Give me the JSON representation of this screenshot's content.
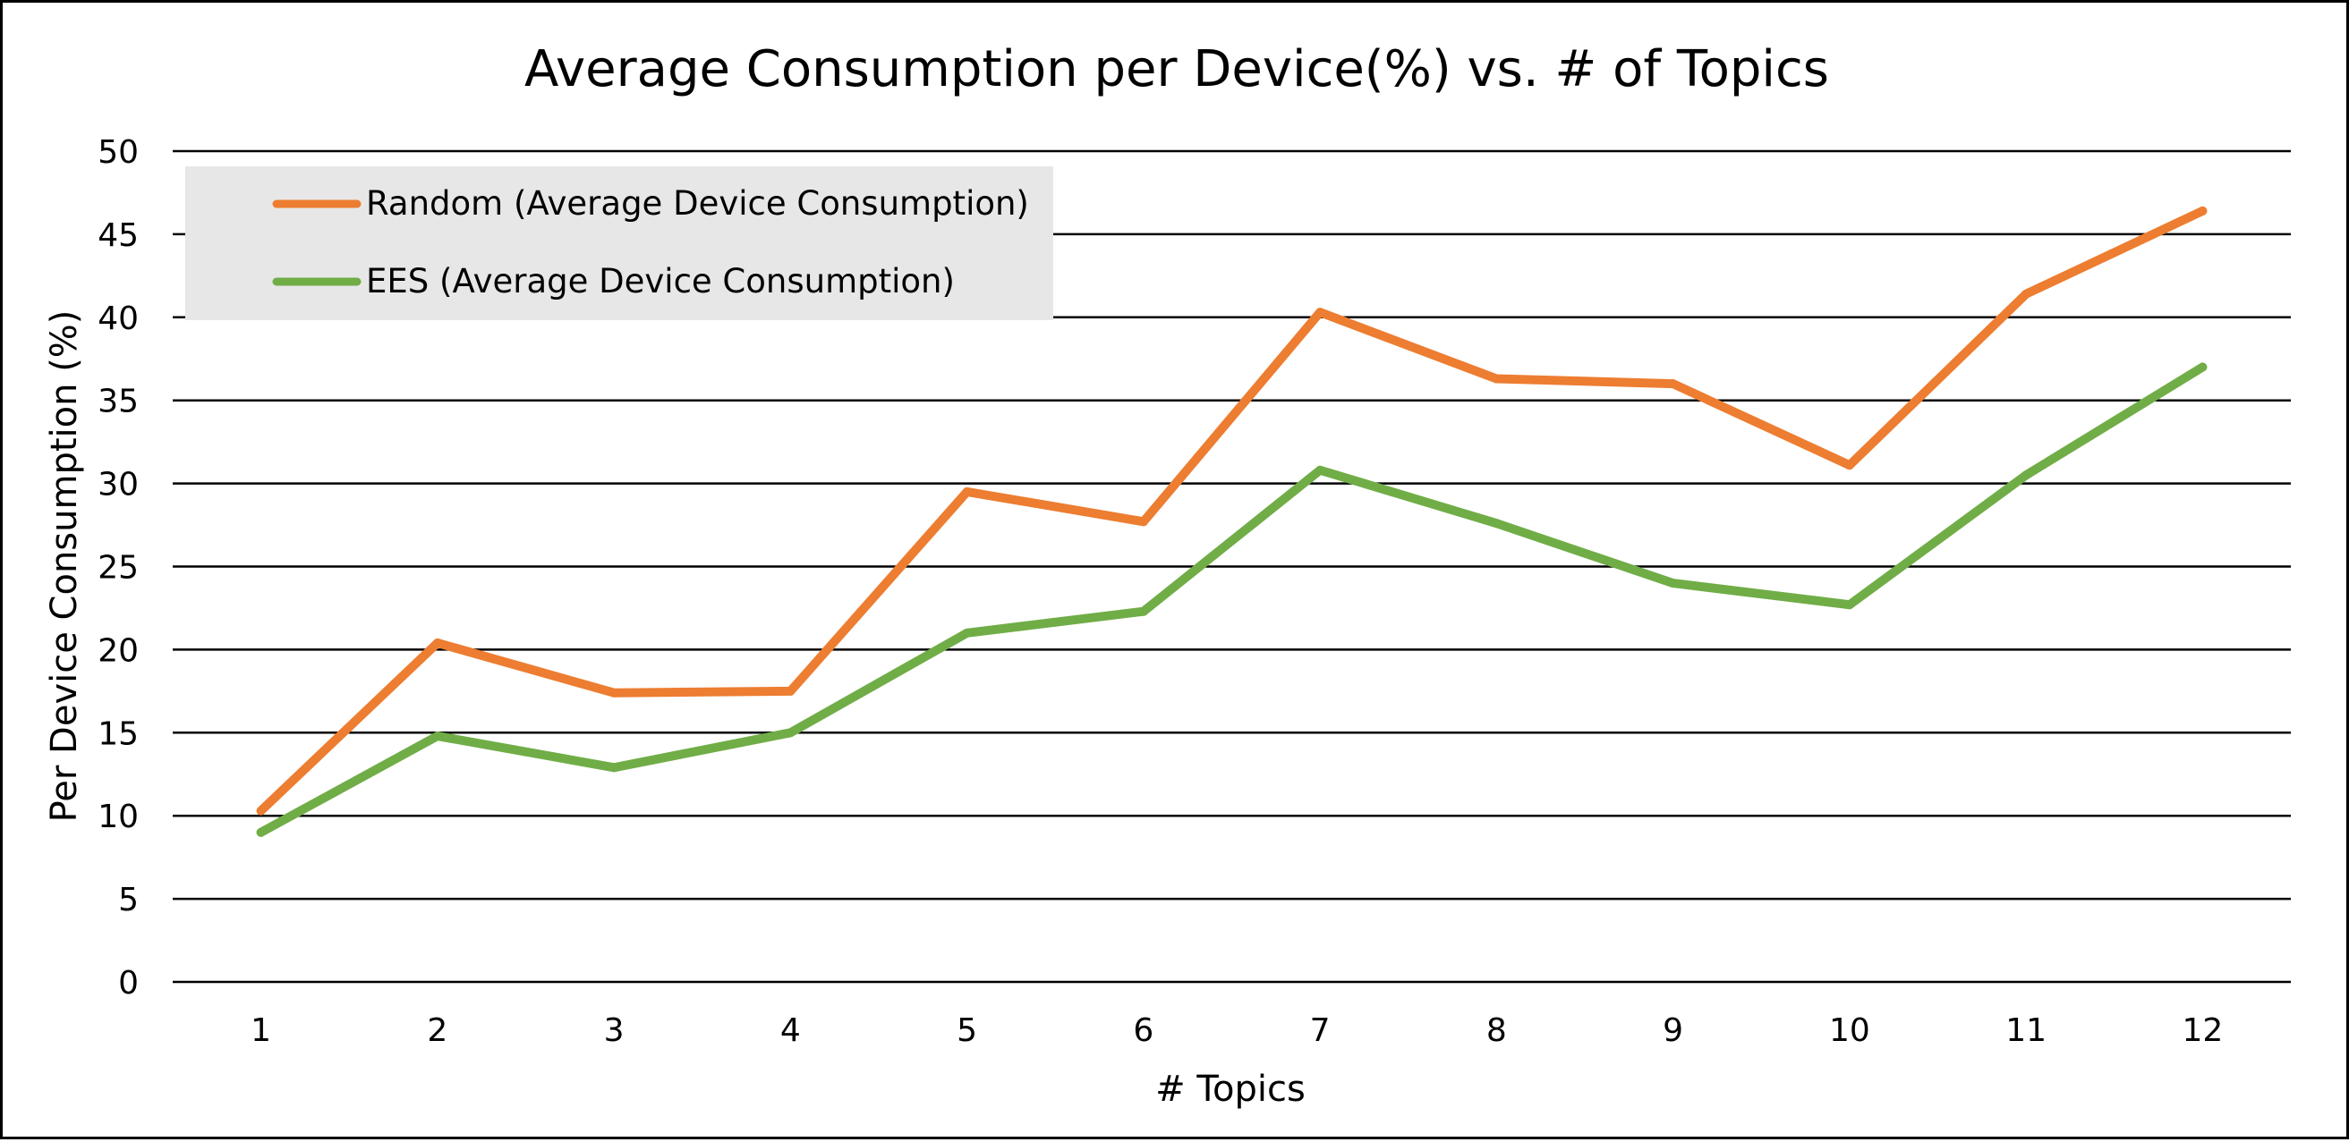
{
  "chart_data": {
    "type": "line",
    "title": "Average Consumption per Device(%) vs. # of Topics",
    "xlabel": "# Topics",
    "ylabel": "Per Device Consumption (%)",
    "categories": [
      "1",
      "2",
      "3",
      "4",
      "5",
      "6",
      "7",
      "8",
      "9",
      "10",
      "11",
      "12"
    ],
    "ylim": [
      0,
      50
    ],
    "yticks": [
      "0",
      "5",
      "10",
      "15",
      "20",
      "25",
      "30",
      "35",
      "40",
      "45",
      "50"
    ],
    "grid": true,
    "legend_position": "top-left",
    "series": [
      {
        "name": "Random (Average Device Consumption)",
        "color": "#ED7D31",
        "values": [
          10.3,
          20.4,
          17.4,
          17.5,
          29.5,
          27.7,
          40.3,
          36.3,
          36.0,
          31.1,
          41.4,
          46.4
        ]
      },
      {
        "name": "EES (Average Device Consumption)",
        "color": "#70AD47",
        "values": [
          9.0,
          14.8,
          12.9,
          15.0,
          21.0,
          22.3,
          30.8,
          27.6,
          24.0,
          22.7,
          30.5,
          37.0
        ]
      }
    ]
  }
}
